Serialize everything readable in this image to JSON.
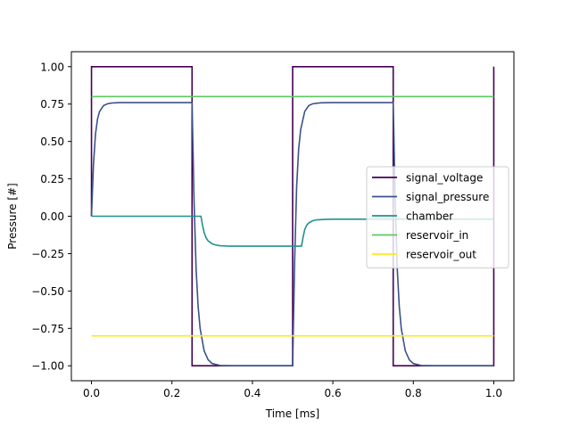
{
  "chart_data": {
    "type": "line",
    "title": "",
    "xlabel": "Time [ms]",
    "ylabel": "Pressure [#]",
    "xlim": [
      -0.05,
      1.05
    ],
    "ylim": [
      -1.1,
      1.1
    ],
    "xticks": [
      0.0,
      0.2,
      0.4,
      0.6,
      0.8,
      1.0
    ],
    "xtick_labels": [
      "0.0",
      "0.2",
      "0.4",
      "0.6",
      "0.8",
      "1.0"
    ],
    "yticks": [
      -1.0,
      -0.75,
      -0.5,
      -0.25,
      0.0,
      0.25,
      0.5,
      0.75,
      1.0
    ],
    "ytick_labels": [
      "−1.00",
      "−0.75",
      "−0.50",
      "−0.25",
      "0.00",
      "0.25",
      "0.50",
      "0.75",
      "1.00"
    ],
    "grid": false,
    "legend_position": "center-right",
    "series": [
      {
        "name": "signal_voltage",
        "color": "#440154",
        "x": [
          0.0,
          0.0,
          0.25,
          0.25,
          0.5,
          0.5,
          0.75,
          0.75,
          1.0,
          1.0
        ],
        "y": [
          0.0,
          1.0,
          1.0,
          -1.0,
          -1.0,
          1.0,
          1.0,
          -1.0,
          -1.0,
          1.0
        ]
      },
      {
        "name": "signal_pressure",
        "color": "#3b528b",
        "x": [
          0.0,
          0.005,
          0.01,
          0.015,
          0.02,
          0.03,
          0.04,
          0.05,
          0.07,
          0.1,
          0.25,
          0.255,
          0.26,
          0.265,
          0.27,
          0.28,
          0.29,
          0.3,
          0.32,
          0.35,
          0.5,
          0.505,
          0.51,
          0.515,
          0.52,
          0.53,
          0.54,
          0.55,
          0.57,
          0.6,
          0.75,
          0.755,
          0.76,
          0.765,
          0.77,
          0.78,
          0.79,
          0.8,
          0.82,
          0.85,
          1.0
        ],
        "y": [
          0.0,
          0.35,
          0.55,
          0.65,
          0.7,
          0.74,
          0.752,
          0.757,
          0.76,
          0.76,
          0.76,
          0.1,
          -0.35,
          -0.6,
          -0.75,
          -0.9,
          -0.96,
          -0.985,
          -0.998,
          -1.0,
          -1.0,
          -0.3,
          0.2,
          0.45,
          0.58,
          0.7,
          0.74,
          0.752,
          0.758,
          0.76,
          0.76,
          0.1,
          -0.35,
          -0.6,
          -0.75,
          -0.9,
          -0.96,
          -0.985,
          -0.998,
          -1.0,
          -1.0
        ]
      },
      {
        "name": "chamber",
        "color": "#21918c",
        "x": [
          0.0,
          0.272,
          0.276,
          0.28,
          0.285,
          0.29,
          0.3,
          0.31,
          0.32,
          0.34,
          0.36,
          0.5,
          0.522,
          0.526,
          0.53,
          0.535,
          0.54,
          0.55,
          0.56,
          0.58,
          0.6,
          1.0
        ],
        "y": [
          0.0,
          0.0,
          -0.06,
          -0.11,
          -0.145,
          -0.165,
          -0.185,
          -0.193,
          -0.197,
          -0.2,
          -0.2,
          -0.2,
          -0.2,
          -0.14,
          -0.09,
          -0.06,
          -0.045,
          -0.03,
          -0.024,
          -0.021,
          -0.02,
          -0.02
        ]
      },
      {
        "name": "reservoir_in",
        "color": "#5ec962",
        "x": [
          0.0,
          1.0
        ],
        "y": [
          0.8,
          0.8
        ]
      },
      {
        "name": "reservoir_out",
        "color": "#fde725",
        "x": [
          0.0,
          1.0
        ],
        "y": [
          -0.8,
          -0.8
        ]
      }
    ]
  }
}
